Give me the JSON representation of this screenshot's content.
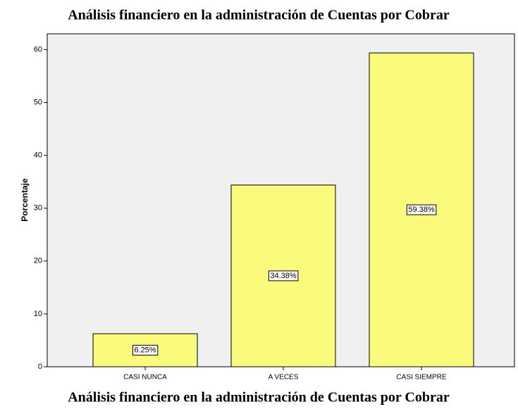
{
  "chart_data": {
    "type": "bar",
    "title": "Análisis financiero en la administración de Cuentas por Cobrar",
    "caption": "Análisis financiero en la administración de Cuentas por Cobrar",
    "ylabel": "Porcentaje",
    "categories": [
      "CASI NUNCA",
      "A VECES",
      "CASI SIEMPRE"
    ],
    "values": [
      6.25,
      34.38,
      59.38
    ],
    "value_labels": [
      "6.25%",
      "34.38%",
      "59.38%"
    ],
    "color": "#fafa7c",
    "ylim": [
      0,
      63
    ],
    "yticks": [
      0,
      10,
      20,
      30,
      40,
      50,
      60
    ],
    "grid": false
  }
}
